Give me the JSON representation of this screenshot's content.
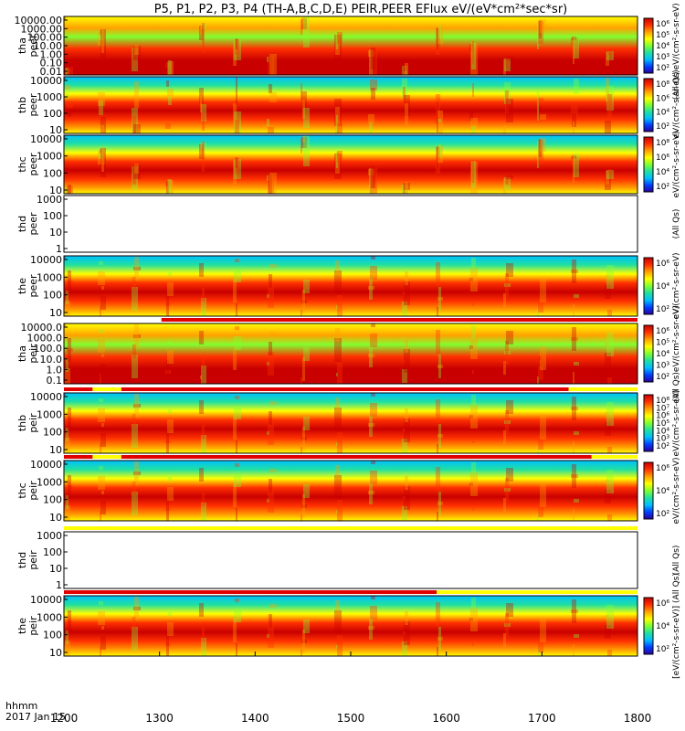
{
  "chart_data": {
    "type": "heatmap",
    "title": "P5, P1, P2, P3, P4 (TH-A,B,C,D,E) PEIR,PEER EFlux eV/(eV*cm²*sec*sr)",
    "x_label_line1": "hhmm",
    "x_label_line2": "2017 Jan 15",
    "x_ticks": [
      "1200",
      "1300",
      "1400",
      "1500",
      "1600",
      "1700",
      "1800"
    ],
    "xlim": [
      1200,
      1800
    ],
    "y_scale": "log",
    "panels": [
      {
        "label1": "tha",
        "label2": "peer",
        "yticks": [
          "10000.00",
          "1000.00",
          "100.00",
          "10.00",
          "1.00",
          "0.10",
          "0.01"
        ],
        "has_data": true,
        "colorbar": true,
        "cbar_ticks": [
          "10⁶",
          "10⁵",
          "10⁴",
          "10³",
          "10²"
        ],
        "cbar_title": "(All Qs)eV/(cm²-s-sr-eV) (A"
      },
      {
        "label1": "thb",
        "label2": "peer",
        "yticks": [
          "10000",
          "1000",
          "100",
          "10"
        ],
        "has_data": true,
        "colorbar": true,
        "cbar_ticks": [
          "10⁸",
          "10⁶",
          "10⁴",
          "10²"
        ],
        "cbar_title": "eV/(cm²-s-sr-eV)"
      },
      {
        "label1": "thc",
        "label2": "peer",
        "yticks": [
          "10000",
          "1000",
          "100",
          "10"
        ],
        "has_data": true,
        "colorbar": true,
        "cbar_ticks": [
          "10⁸",
          "10⁶",
          "10⁴",
          "10²"
        ],
        "cbar_title": "eV/(cm²-s-sr-eV)"
      },
      {
        "label1": "thd",
        "label2": "peer",
        "yticks": [
          "1000",
          "100",
          "10",
          "1"
        ],
        "has_data": false,
        "colorbar": false,
        "cbar_ticks": [],
        "cbar_title": "(All Qs)"
      },
      {
        "label1": "the",
        "label2": "peer",
        "yticks": [
          "10000",
          "1000",
          "100",
          "10"
        ],
        "has_data": true,
        "colorbar": true,
        "cbar_ticks": [
          "10⁶",
          "10⁴",
          "10²"
        ],
        "cbar_title": "eV/(cm²-s-sr-eV)"
      },
      {
        "label1": "tha",
        "label2": "peir",
        "yticks": [
          "10000.0",
          "1000.0",
          "100.0",
          "10.0",
          "1.0",
          "0.1"
        ],
        "has_data": true,
        "colorbar": true,
        "cbar_ticks": [
          "10⁶",
          "10⁵",
          "10⁴",
          "10³",
          "10²"
        ],
        "cbar_title": "(All Qs)eV/(cm²-s-sr-eV)"
      },
      {
        "label1": "thb",
        "label2": "peir",
        "yticks": [
          "10000",
          "1000",
          "100",
          "10"
        ],
        "has_data": true,
        "colorbar": true,
        "cbar_ticks": [
          "10⁸",
          "10⁷",
          "10⁶",
          "10⁵",
          "10⁴",
          "10³",
          "10²"
        ],
        "cbar_title": "eV/(cm²-s-sr-eV)"
      },
      {
        "label1": "thc",
        "label2": "peir",
        "yticks": [
          "10000",
          "1000",
          "100",
          "10"
        ],
        "has_data": true,
        "colorbar": true,
        "cbar_ticks": [
          "10⁶",
          "10⁴",
          "10²"
        ],
        "cbar_title": "eV/(cm²-s-sr-eV)"
      },
      {
        "label1": "thd",
        "label2": "peir",
        "yticks": [
          "1000",
          "100",
          "10",
          "1"
        ],
        "has_data": false,
        "colorbar": false,
        "cbar_ticks": [],
        "cbar_title": "(All Qs)"
      },
      {
        "label1": "the",
        "label2": "peir",
        "yticks": [
          "10000",
          "1000",
          "100",
          "10"
        ],
        "has_data": true,
        "colorbar": true,
        "cbar_ticks": [
          "10⁶",
          "10⁴",
          "10²"
        ],
        "cbar_title": "[eV/(cm²-s-sr-eV)] (All Qs)"
      }
    ],
    "colormap": [
      "#2a00a0",
      "#0040ff",
      "#00c0ff",
      "#20e0a0",
      "#80ff30",
      "#ffff00",
      "#ffa000",
      "#ff3000",
      "#c80000"
    ],
    "colors": {
      "bar_red": "#e00000",
      "bar_yellow": "#ffff00",
      "bar_white": "#ffffff",
      "black": "#000000"
    }
  }
}
